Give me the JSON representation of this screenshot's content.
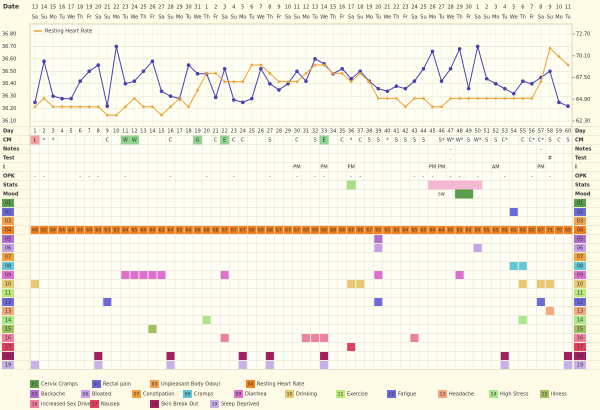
{
  "header": {
    "date_label": "Date",
    "dates": [
      13,
      14,
      15,
      16,
      17,
      18,
      19,
      20,
      21,
      22,
      23,
      24,
      25,
      26,
      27,
      28,
      29,
      30,
      31,
      1,
      2,
      3,
      4,
      5,
      6,
      7,
      8,
      9,
      10,
      11,
      12,
      13,
      14,
      15,
      16,
      17,
      18,
      19,
      20,
      21,
      22,
      23,
      24,
      25,
      26,
      27,
      28,
      29,
      30,
      1,
      2,
      3,
      4,
      5,
      6,
      7,
      8,
      9,
      10,
      11
    ],
    "weekdays": [
      "Sa",
      "Su",
      "Mo",
      "Tu",
      "We",
      "Th",
      "Fr",
      "Sa",
      "Su",
      "Mo",
      "Tu",
      "We",
      "Th",
      "Fr",
      "Sa",
      "Su",
      "Mo",
      "Tu",
      "We",
      "Th",
      "Fr",
      "Sa",
      "Su",
      "Mo",
      "Tu",
      "We",
      "Th",
      "Fr",
      "Sa",
      "Su",
      "Mo",
      "Tu",
      "We",
      "Th",
      "Fr",
      "Sa",
      "Su",
      "Mo",
      "Tu",
      "We",
      "Th",
      "Fr",
      "Sa",
      "Su",
      "Mo",
      "Tu",
      "We",
      "Th",
      "Fr",
      "Sa",
      "Su",
      "Mo",
      "Tu",
      "We",
      "Th",
      "Fr",
      "Sa",
      "Su",
      "Mo",
      "Tu"
    ]
  },
  "chart_data": {
    "type": "line",
    "x": [
      1,
      2,
      3,
      4,
      5,
      6,
      7,
      8,
      9,
      10,
      11,
      12,
      13,
      14,
      15,
      16,
      17,
      18,
      19,
      20,
      21,
      22,
      23,
      24,
      25,
      26,
      27,
      28,
      29,
      30,
      31,
      32,
      33,
      34,
      35,
      36,
      37,
      38,
      39,
      40,
      41,
      42,
      43,
      44,
      45,
      46,
      47,
      48,
      49,
      50,
      51,
      52,
      53,
      54,
      55,
      56,
      57,
      58,
      59,
      60
    ],
    "xlim": [
      1,
      60
    ],
    "ylim": [
      36.1,
      36.8
    ],
    "yticks": [
      {
        "value": 36.8,
        "label": "36.80"
      },
      {
        "value": 36.7,
        "label": "36.70"
      },
      {
        "value": 36.6,
        "label": "36.60"
      },
      {
        "value": 36.5,
        "label": "36.50"
      },
      {
        "value": 36.4,
        "label": "36.40"
      },
      {
        "value": 36.3,
        "label": "36.30"
      },
      {
        "value": 36.2,
        "label": "36.20"
      },
      {
        "value": 36.1,
        "label": "36.10"
      }
    ],
    "y2lim": [
      62.3,
      72.7
    ],
    "y2ticks": [
      {
        "value": 72.7,
        "label": "72.70"
      },
      {
        "value": 70.1,
        "label": "70.10"
      },
      {
        "value": 67.5,
        "label": "67.50"
      },
      {
        "value": 64.9,
        "label": "64.90"
      },
      {
        "value": 62.3,
        "label": "62.30"
      }
    ],
    "grid": true,
    "legend": "top-left",
    "series": [
      {
        "color": "#4b3fb5",
        "values": [
          36.25,
          36.58,
          36.3,
          36.28,
          36.28,
          36.42,
          36.5,
          36.55,
          36.22,
          36.7,
          36.4,
          36.42,
          36.5,
          36.58,
          36.34,
          36.3,
          36.28,
          36.55,
          36.48,
          36.48,
          36.29,
          36.52,
          36.27,
          36.25,
          36.28,
          36.52,
          36.4,
          36.35,
          36.4,
          36.5,
          36.42,
          36.6,
          36.56,
          36.48,
          36.52,
          36.44,
          36.5,
          36.42,
          36.36,
          36.34,
          36.38,
          36.36,
          36.42,
          36.52,
          36.66,
          36.42,
          36.52,
          36.68,
          36.36,
          36.7,
          36.44,
          36.4,
          36.36,
          36.32,
          36.42,
          36.4,
          36.45,
          36.5,
          36.25,
          36.22
        ]
      },
      {
        "name": "Resting Heart Rate",
        "color": "#f0a030",
        "axis": "y2",
        "values": [
          64,
          65,
          64,
          64,
          64,
          64,
          64,
          64,
          63,
          63,
          64,
          65,
          64,
          64,
          63,
          64,
          65,
          64,
          66,
          68,
          68,
          67,
          67,
          67,
          69,
          69,
          68,
          67,
          67,
          67,
          68,
          69,
          69,
          68,
          68,
          67,
          68,
          67,
          65,
          65,
          65,
          64,
          65,
          65,
          64,
          64,
          65,
          65,
          65,
          65,
          65,
          65,
          65,
          65,
          65,
          65,
          67,
          71,
          70,
          69
        ]
      }
    ]
  },
  "grid": {
    "labels": [
      "Day",
      "CM",
      "Notes",
      "Test",
      "I",
      "OPK",
      "Stats",
      "Mood"
    ],
    "cm": {
      "1": "L",
      "2": "*",
      "3": "*",
      "9": "C",
      "11": "W",
      "12": "W",
      "16": "C",
      "19": "G",
      "21": "C",
      "22": "E",
      "23": "C",
      "24": "C",
      "27": "S",
      "30": "C",
      "32": "S",
      "33": "E",
      "35": "C",
      "36": "*",
      "37": "C",
      "38": "S",
      "39": "S",
      "40": "*",
      "41": "S",
      "42": "S",
      "43": "S",
      "44": "S",
      "46": "S*",
      "47": "W*",
      "48": "W*",
      "49": "S",
      "50": "W*",
      "51": "S",
      "52": "S",
      "53": "C*",
      "55": "C",
      "56": "C*",
      "57": "C*",
      "58": "S",
      "59": "C",
      "60": "S"
    },
    "cm_colors": {
      "W": "#8fd48f",
      "E": "#8fd48f",
      "G": "#8fd48f",
      "L": "#f4a0a0"
    },
    "notes": {
      "47": "-",
      "57": "-"
    },
    "test": {
      "47": ".",
      "58": "#"
    },
    "intercourse": {
      "30": "PM",
      "33": "PM",
      "36": "PM",
      "45": "PM",
      "46": "PM",
      "52": "AM",
      "57": "PM"
    },
    "opk": {
      "1": "-",
      "2": "-",
      "6": "-",
      "7": "-",
      "8": "-",
      "11": "-",
      "16": "-",
      "20": "-",
      "23": "-",
      "27": "-",
      "30": "-",
      "32": "-",
      "33": "-",
      "36": "-",
      "37": "-",
      "43": "-",
      "44": "-",
      "45": "-",
      "47": "-",
      "48": "-",
      "50": "-",
      "53": "-",
      "56": "-",
      "58": "-"
    },
    "mood": {
      "46": "sw"
    }
  },
  "symptoms": [
    {
      "code": "01",
      "label": "Cervix Cramps",
      "color": "#5a9e4b",
      "days": []
    },
    {
      "code": "02",
      "label": "Rectal pain",
      "color": "#6a6ad8",
      "days": [
        54
      ]
    },
    {
      "code": "03",
      "label": "Unpleasant Body Odour",
      "color": "#f0a050",
      "days": []
    },
    {
      "code": "04",
      "label": "Resting Heart Rate",
      "color": "#f08020",
      "days": []
    },
    {
      "code": "05",
      "label": "Backache",
      "color": "#b070d0",
      "days": [
        39
      ]
    },
    {
      "code": "06",
      "label": "Bloated",
      "color": "#c9a0e8",
      "days": [
        39,
        50
      ]
    },
    {
      "code": "07",
      "label": "Constipation",
      "color": "#f0a040",
      "days": []
    },
    {
      "code": "08",
      "label": "Cramps",
      "color": "#60c8d8",
      "days": [
        54,
        55
      ]
    },
    {
      "code": "09",
      "label": "Diarrhea",
      "color": "#e070d0",
      "days": [
        11,
        12,
        13,
        14,
        15,
        22,
        39,
        48
      ]
    },
    {
      "code": "10",
      "label": "Drinking",
      "color": "#e8c870",
      "days": [
        1,
        36,
        37,
        55,
        57,
        58
      ]
    },
    {
      "code": "11",
      "label": "Exercise",
      "color": "#b8e878",
      "days": []
    },
    {
      "code": "12",
      "label": "Fatigue",
      "color": "#6a6ad8",
      "days": [
        9,
        39,
        57
      ]
    },
    {
      "code": "13",
      "label": "Headache",
      "color": "#f0a880",
      "days": [
        58
      ]
    },
    {
      "code": "14",
      "label": "High Stress",
      "color": "#a8e888",
      "days": [
        20,
        55
      ]
    },
    {
      "code": "15",
      "label": "Illness",
      "color": "#a0c060",
      "days": [
        14
      ]
    },
    {
      "code": "16",
      "label": "Increased Sex Drive",
      "color": "#f080a0",
      "days": [
        22,
        31,
        32,
        33,
        43
      ]
    },
    {
      "code": "17",
      "label": "Nausea",
      "color": "#e04060",
      "days": [
        36
      ]
    },
    {
      "code": "18",
      "label": "Skin Break Out",
      "color": "#a02060",
      "days": [
        8,
        16,
        24,
        27,
        33,
        53,
        60
      ]
    },
    {
      "code": "19",
      "label": "Sleep Deprived",
      "color": "#c8b0e8",
      "days": [
        1,
        8,
        16,
        24,
        27,
        33,
        53,
        60
      ]
    }
  ]
}
